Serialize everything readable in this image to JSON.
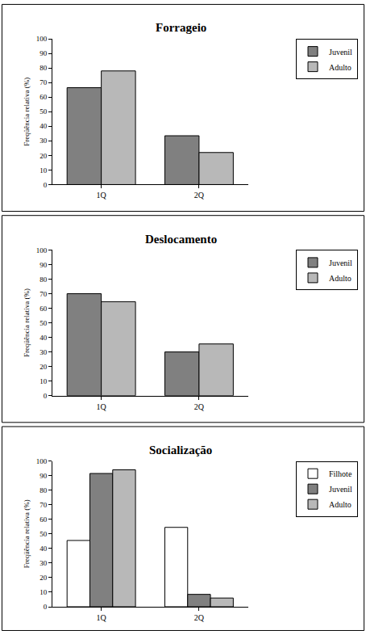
{
  "chart_data": [
    {
      "type": "bar",
      "title": "Forrageio",
      "y_label": "Freqüência relativa (%)",
      "categories": [
        "1Q",
        "2Q"
      ],
      "series": [
        {
          "name": "Juvenil",
          "color": "#808080",
          "values": [
            66.5,
            33.5
          ]
        },
        {
          "name": "Adulto",
          "color": "#b8b8b8",
          "values": [
            78,
            22
          ]
        }
      ],
      "ylim": [
        0,
        100
      ],
      "yticks": [
        0,
        10,
        20,
        30,
        40,
        50,
        60,
        70,
        80,
        90,
        100
      ],
      "grid": false,
      "legend": "right"
    },
    {
      "type": "bar",
      "title": "Deslocamento",
      "y_label": "Freqüência relativa (%)",
      "categories": [
        "1Q",
        "2Q"
      ],
      "series": [
        {
          "name": "Juvenil",
          "color": "#808080",
          "values": [
            70,
            30
          ]
        },
        {
          "name": "Adulto",
          "color": "#b8b8b8",
          "values": [
            64.5,
            35.5
          ]
        }
      ],
      "ylim": [
        0,
        100
      ],
      "yticks": [
        0,
        10,
        20,
        30,
        40,
        50,
        60,
        70,
        80,
        90,
        100
      ],
      "grid": false,
      "legend": "right"
    },
    {
      "type": "bar",
      "title": "Socialização",
      "y_label": "Freqüência relativa (%)",
      "categories": [
        "1Q",
        "2Q"
      ],
      "series": [
        {
          "name": "Filhote",
          "color": "#ffffff",
          "values": [
            45.5,
            54.5
          ]
        },
        {
          "name": "Juvenil",
          "color": "#808080",
          "values": [
            91.5,
            8.5
          ]
        },
        {
          "name": "Adulto",
          "color": "#b8b8b8",
          "values": [
            94,
            6
          ]
        }
      ],
      "ylim": [
        0,
        100
      ],
      "yticks": [
        0,
        10,
        20,
        30,
        40,
        50,
        60,
        70,
        80,
        90,
        100
      ],
      "grid": false,
      "legend": "right"
    }
  ]
}
